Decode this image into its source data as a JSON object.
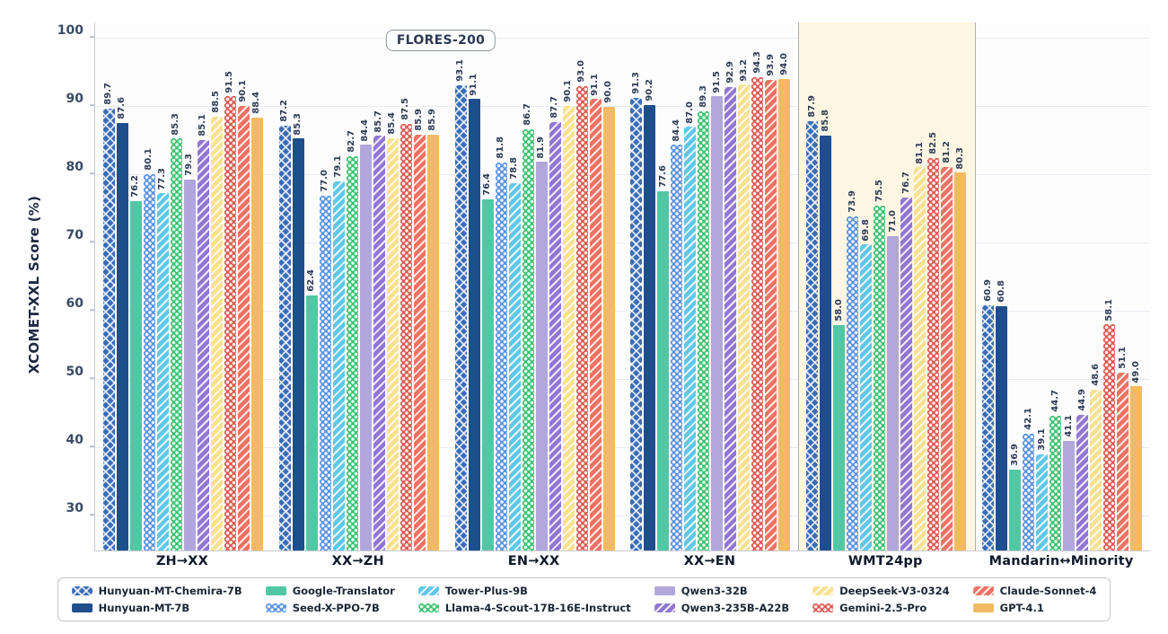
{
  "chart_data": {
    "type": "bar",
    "title_badge": "FLORES-200",
    "ylabel": "XCOMET-XXL Score (%)",
    "ylim": [
      25,
      102.3
    ],
    "yticks": [
      30,
      40,
      50,
      60,
      70,
      80,
      90,
      100
    ],
    "grid": true,
    "legend_position": "bottom",
    "categories": [
      "ZH→XX",
      "XX→ZH",
      "EN→XX",
      "XX→EN",
      "WMT24pp",
      "Mandarin↔Minority"
    ],
    "highlight_category": "WMT24pp",
    "series": [
      {
        "name": "Hunyuan-MT-Chemira-7B",
        "color": "#3a6db8",
        "pattern": "crosshatch",
        "values": [
          89.7,
          87.2,
          93.1,
          91.3,
          87.9,
          60.9
        ]
      },
      {
        "name": "Hunyuan-MT-7B",
        "color": "#1f4e8c",
        "pattern": "solid",
        "values": [
          87.6,
          85.3,
          91.1,
          90.2,
          85.8,
          60.8
        ]
      },
      {
        "name": "Google-Translator",
        "color": "#52c7a4",
        "pattern": "solid",
        "values": [
          76.2,
          62.4,
          76.4,
          77.6,
          58.0,
          36.9
        ]
      },
      {
        "name": "Seed-X-PPO-7B",
        "color": "#5b93e0",
        "pattern": "dots",
        "values": [
          80.1,
          77.0,
          81.8,
          84.4,
          73.9,
          42.1
        ]
      },
      {
        "name": "Tower-Plus-9B",
        "color": "#5fc8ea",
        "pattern": "stripes",
        "values": [
          77.3,
          79.1,
          78.8,
          87.0,
          69.8,
          39.1
        ]
      },
      {
        "name": "Llama-4-Scout-17B-16E-Instruct",
        "color": "#3fc172",
        "pattern": "dots",
        "values": [
          85.3,
          82.7,
          86.7,
          89.3,
          75.5,
          44.7
        ]
      },
      {
        "name": "Qwen3-32B",
        "color": "#b1a7db",
        "pattern": "solid",
        "values": [
          79.3,
          84.4,
          81.9,
          91.5,
          71.0,
          41.1
        ]
      },
      {
        "name": "Qwen3-235B-A22B",
        "color": "#9177d1",
        "pattern": "stripes",
        "values": [
          85.1,
          85.7,
          87.7,
          92.9,
          76.7,
          44.9
        ]
      },
      {
        "name": "DeepSeek-V3-0324",
        "color": "#f9e190",
        "pattern": "stripes",
        "values": [
          88.5,
          85.4,
          90.1,
          93.2,
          81.1,
          48.6
        ]
      },
      {
        "name": "Gemini-2.5-Pro",
        "color": "#dd5a55",
        "pattern": "dots",
        "values": [
          91.5,
          87.5,
          93.0,
          94.3,
          82.5,
          58.1
        ]
      },
      {
        "name": "Claude-Sonnet-4",
        "color": "#ec7265",
        "pattern": "stripes",
        "values": [
          90.1,
          85.9,
          91.1,
          93.9,
          81.2,
          51.1
        ]
      },
      {
        "name": "GPT-4.1",
        "color": "#f4b963",
        "pattern": "solid",
        "values": [
          88.4,
          85.9,
          90.0,
          94.0,
          80.3,
          49.0
        ]
      }
    ],
    "colors": {
      "highlight_bg": "#fdf6e2",
      "highlight_border": "#a9adb5",
      "gridline": "#e8ecf2",
      "axis_spine": "#c6cbd2",
      "value_label": "#2d3b55",
      "tick_label": "#3a4a63"
    }
  }
}
